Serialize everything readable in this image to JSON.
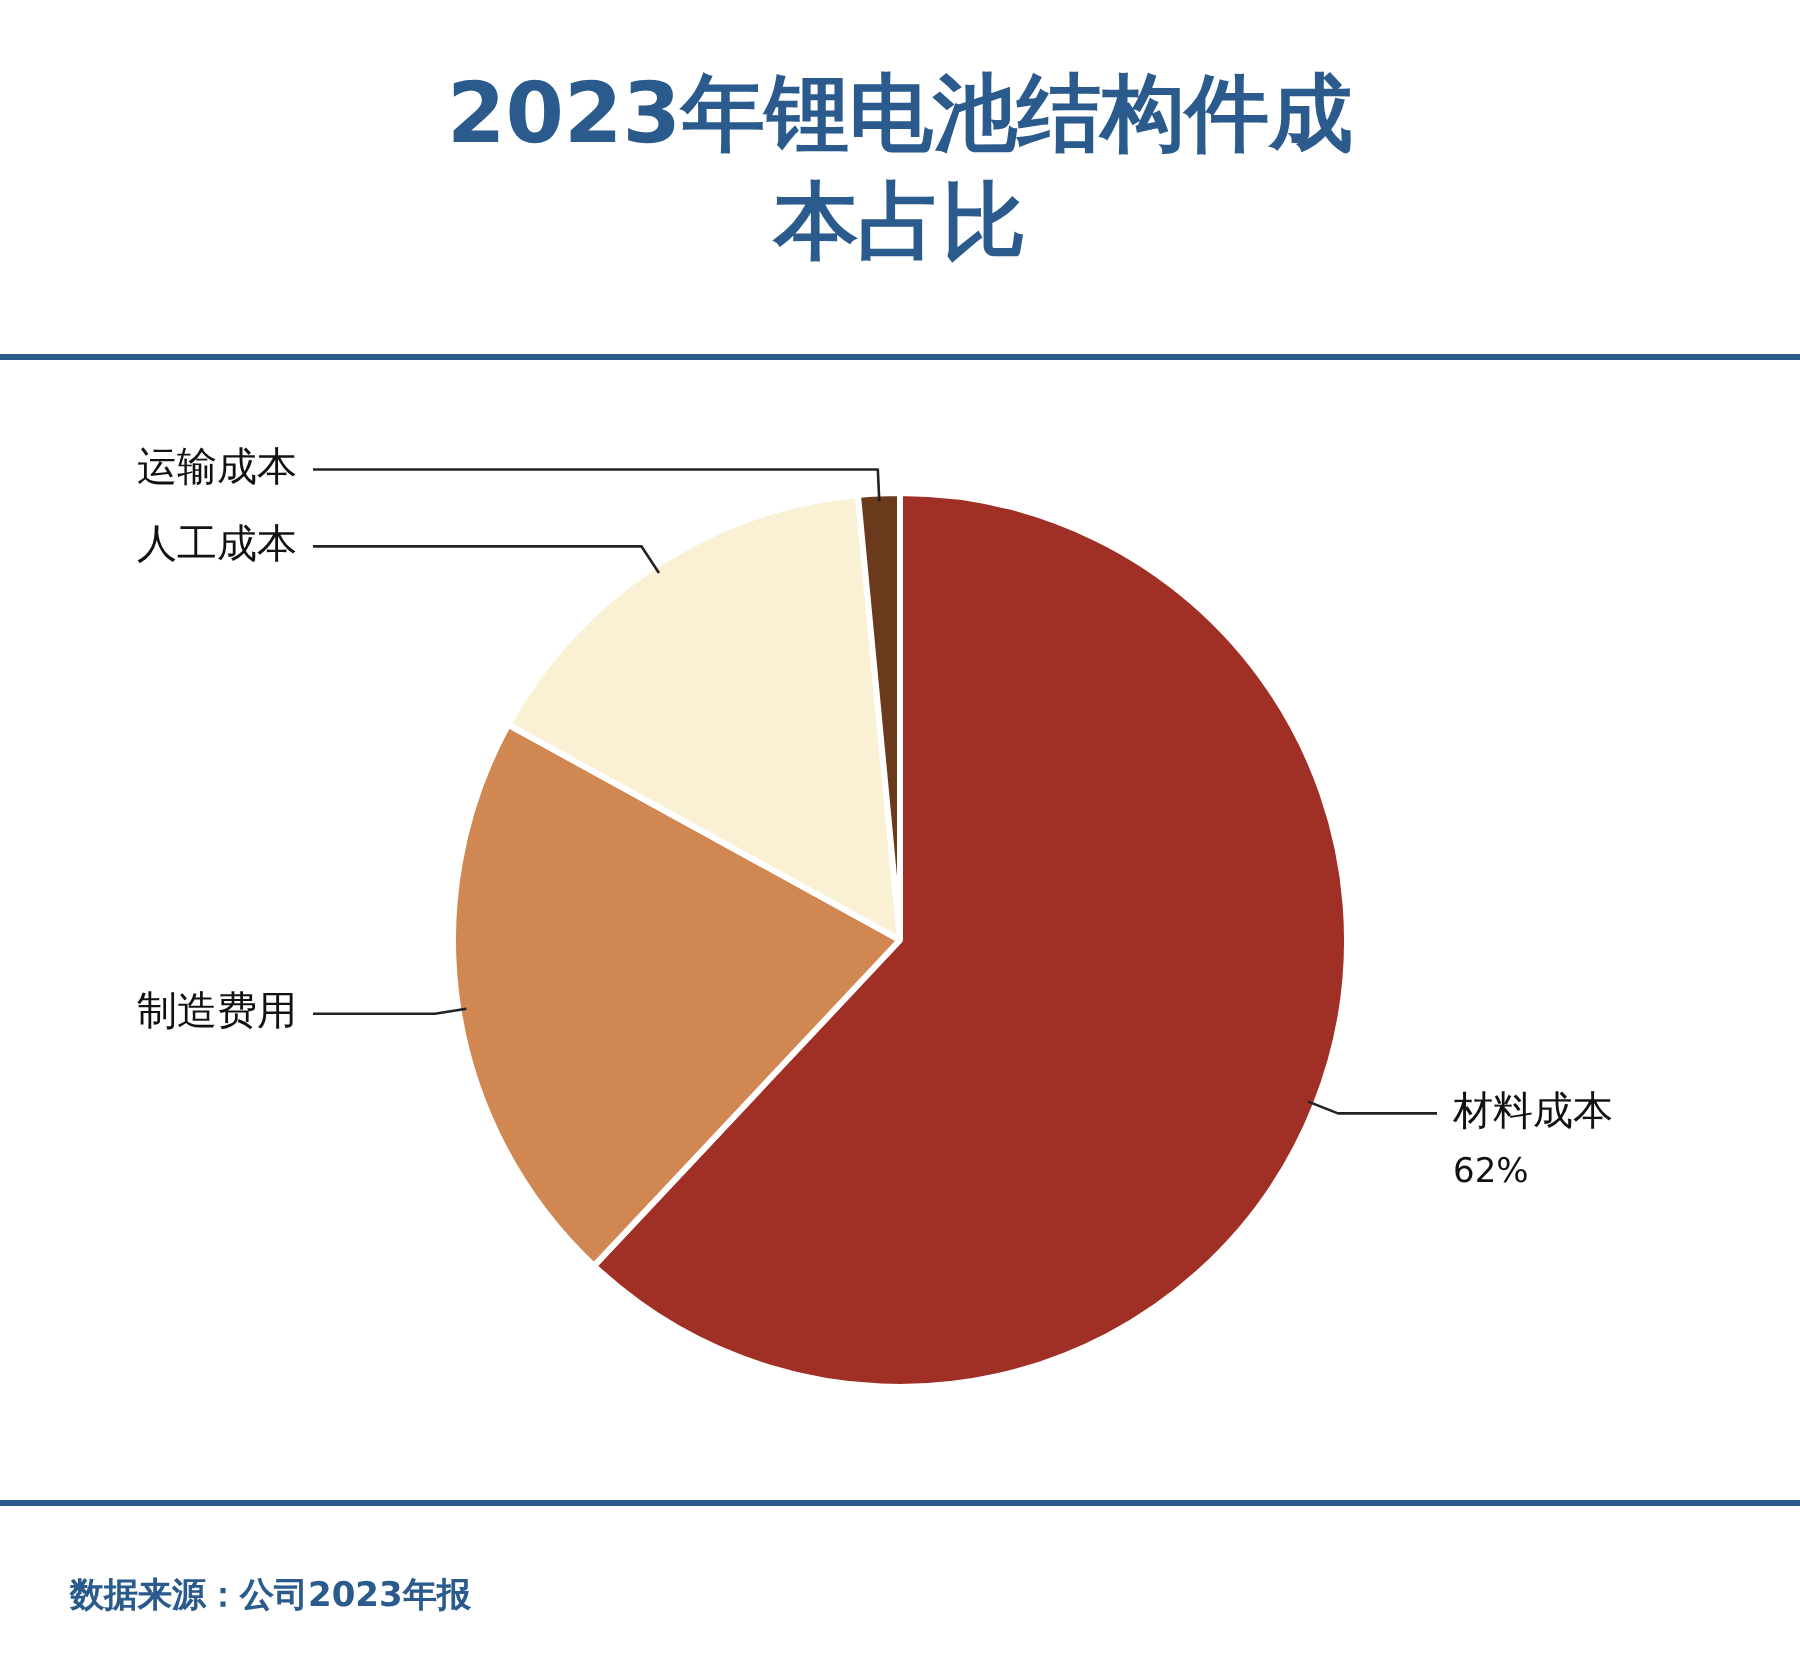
{
  "chart_data": {
    "type": "pie",
    "title": "2023年锂电池结构件成本占比",
    "categories": [
      "材料成本",
      "制造费用",
      "人工成本",
      "运输成本"
    ],
    "values": [
      62,
      21,
      15.5,
      1.5
    ],
    "colors": [
      "#a03025",
      "#d08752",
      "#faf0d4",
      "#6b3a1c"
    ],
    "value_labels": [
      "62%",
      null,
      null,
      null
    ],
    "legend": false,
    "annotations": [
      "数据来源：公司2023年报"
    ]
  }
}
